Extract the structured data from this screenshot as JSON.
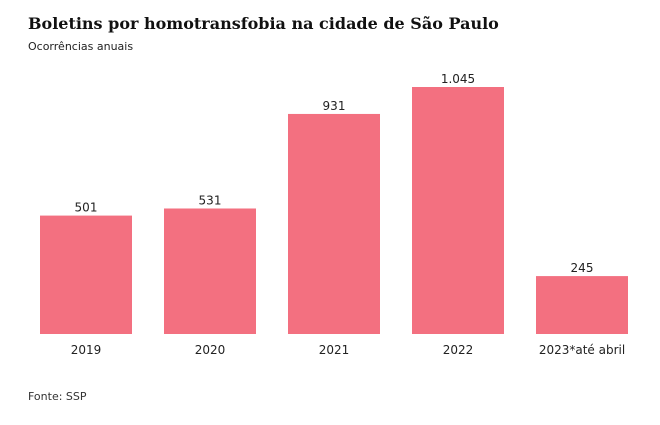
{
  "header": {
    "title": "Boletins por homotransfobia na cidade de São Paulo",
    "subtitle": "Ocorrências anuais"
  },
  "footer": {
    "source": "Fonte: SSP"
  },
  "colors": {
    "bar": "#f37080",
    "baseline": "#c9c9c9"
  },
  "chart_data": {
    "type": "bar",
    "title": "Boletins por homotransfobia na cidade de São Paulo",
    "subtitle": "Ocorrências anuais",
    "categories": [
      "2019",
      "2020",
      "2021",
      "2022",
      "2023*até abril"
    ],
    "values": [
      501,
      531,
      931,
      1045,
      245
    ],
    "value_labels": [
      "501",
      "531",
      "931",
      "1.045",
      "245"
    ],
    "xlabel": "",
    "ylabel": "",
    "ylim": [
      0,
      1045
    ],
    "grid": false,
    "legend": "none"
  }
}
